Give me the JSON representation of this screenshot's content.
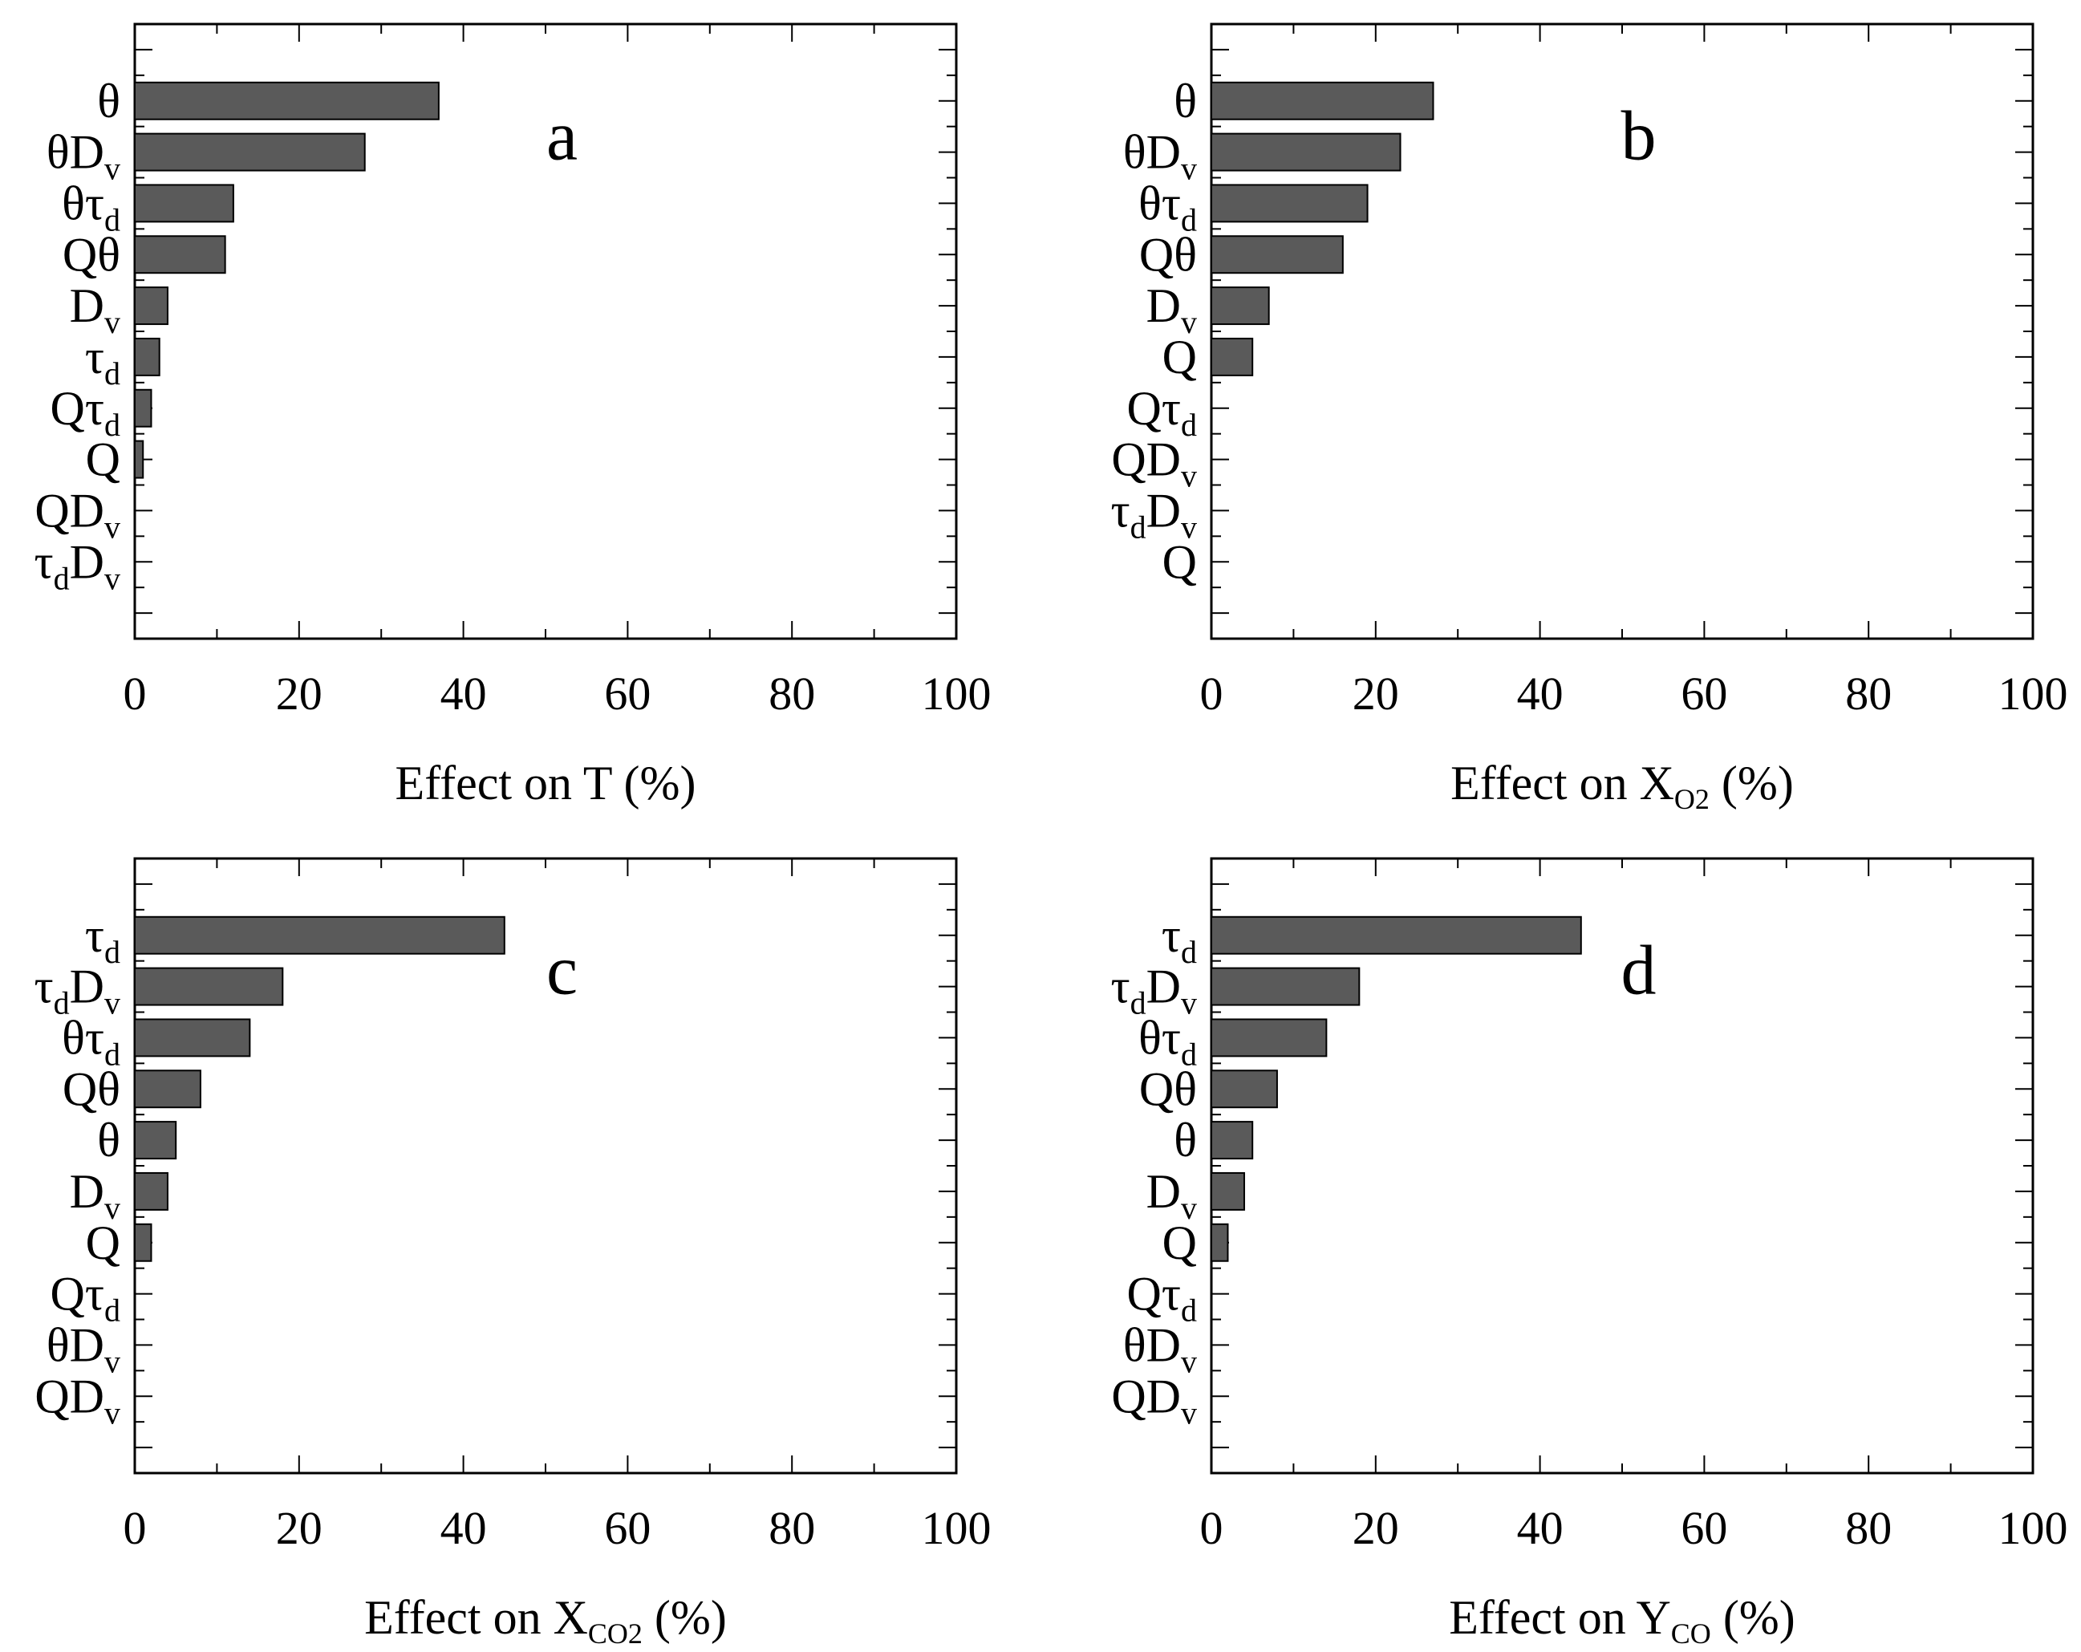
{
  "chart_data": [
    {
      "type": "bar",
      "orientation": "horizontal",
      "panel": "a",
      "xlabel": {
        "main": "Effect on T",
        "sub": "",
        "unit": "(%)"
      },
      "xlim": [
        0,
        100
      ],
      "xticks": [
        0,
        20,
        40,
        60,
        80,
        100
      ],
      "categories": [
        {
          "main": "θ",
          "sub": "",
          "sub_after": ""
        },
        {
          "main": "θD",
          "sub": "v",
          "sub_after": ""
        },
        {
          "main": "θτ",
          "sub": "d",
          "sub_after": ""
        },
        {
          "main": "Qθ",
          "sub": "",
          "sub_after": ""
        },
        {
          "main": "D",
          "sub": "v",
          "sub_after": ""
        },
        {
          "main": "τ",
          "sub": "d",
          "sub_after": ""
        },
        {
          "main": "Qτ",
          "sub": "d",
          "sub_after": ""
        },
        {
          "main": "Q",
          "sub": "",
          "sub_after": ""
        },
        {
          "main": "QD",
          "sub": "v",
          "sub_after": ""
        },
        {
          "main": "τ",
          "sub": "d",
          "sub_after": "D",
          "sub2": "v"
        }
      ],
      "values": [
        37,
        28,
        12,
        11,
        4,
        3,
        2,
        1,
        0,
        0
      ]
    },
    {
      "type": "bar",
      "orientation": "horizontal",
      "panel": "b",
      "xlabel": {
        "main": "Effect on X",
        "sub": "O2",
        "unit": "(%)"
      },
      "xlim": [
        0,
        100
      ],
      "xticks": [
        0,
        20,
        40,
        60,
        80,
        100
      ],
      "categories": [
        {
          "main": "θ",
          "sub": "",
          "sub_after": ""
        },
        {
          "main": "θD",
          "sub": "v",
          "sub_after": ""
        },
        {
          "main": "θτ",
          "sub": "d",
          "sub_after": ""
        },
        {
          "main": "Qθ",
          "sub": "",
          "sub_after": ""
        },
        {
          "main": "D",
          "sub": "v",
          "sub_after": ""
        },
        {
          "main": "Q",
          "sub": "",
          "sub_after": ""
        },
        {
          "main": "Qτ",
          "sub": "d",
          "sub_after": ""
        },
        {
          "main": "QD",
          "sub": "v",
          "sub_after": ""
        },
        {
          "main": "τ",
          "sub": "d",
          "sub_after": "D",
          "sub2": "v"
        },
        {
          "main": "Q",
          "sub": "",
          "sub_after": ""
        }
      ],
      "values": [
        27,
        23,
        19,
        16,
        7,
        5,
        0,
        0,
        0,
        0
      ]
    },
    {
      "type": "bar",
      "orientation": "horizontal",
      "panel": "c",
      "xlabel": {
        "main": "Effect on X",
        "sub": "CO2",
        "unit": "(%)"
      },
      "xlim": [
        0,
        100
      ],
      "xticks": [
        0,
        20,
        40,
        60,
        80,
        100
      ],
      "categories": [
        {
          "main": "τ",
          "sub": "d",
          "sub_after": ""
        },
        {
          "main": "τ",
          "sub": "d",
          "sub_after": "D",
          "sub2": "v"
        },
        {
          "main": "θτ",
          "sub": "d",
          "sub_after": ""
        },
        {
          "main": "Qθ",
          "sub": "",
          "sub_after": ""
        },
        {
          "main": "θ",
          "sub": "",
          "sub_after": ""
        },
        {
          "main": "D",
          "sub": "v",
          "sub_after": ""
        },
        {
          "main": "Q",
          "sub": "",
          "sub_after": ""
        },
        {
          "main": "Qτ",
          "sub": "d",
          "sub_after": ""
        },
        {
          "main": "θD",
          "sub": "v",
          "sub_after": ""
        },
        {
          "main": "QD",
          "sub": "v",
          "sub_after": ""
        }
      ],
      "values": [
        45,
        18,
        14,
        8,
        5,
        4,
        2,
        0,
        0,
        0
      ]
    },
    {
      "type": "bar",
      "orientation": "horizontal",
      "panel": "d",
      "xlabel": {
        "main": "Effect on Y",
        "sub": "CO",
        "unit": "(%)"
      },
      "xlim": [
        0,
        100
      ],
      "xticks": [
        0,
        20,
        40,
        60,
        80,
        100
      ],
      "categories": [
        {
          "main": "τ",
          "sub": "d",
          "sub_after": ""
        },
        {
          "main": "τ",
          "sub": "d",
          "sub_after": "D",
          "sub2": "v"
        },
        {
          "main": "θτ",
          "sub": "d",
          "sub_after": ""
        },
        {
          "main": "Qθ",
          "sub": "",
          "sub_after": ""
        },
        {
          "main": "θ",
          "sub": "",
          "sub_after": ""
        },
        {
          "main": "D",
          "sub": "v",
          "sub_after": ""
        },
        {
          "main": "Q",
          "sub": "",
          "sub_after": ""
        },
        {
          "main": "Qτ",
          "sub": "d",
          "sub_after": ""
        },
        {
          "main": "θD",
          "sub": "v",
          "sub_after": ""
        },
        {
          "main": "QD",
          "sub": "v",
          "sub_after": ""
        }
      ],
      "values": [
        45,
        18,
        14,
        8,
        5,
        4,
        2,
        0,
        0,
        0
      ]
    }
  ],
  "colors": {
    "bar_fill": "#5a5a5a",
    "bar_stroke": "#000000",
    "axis": "#000000"
  }
}
